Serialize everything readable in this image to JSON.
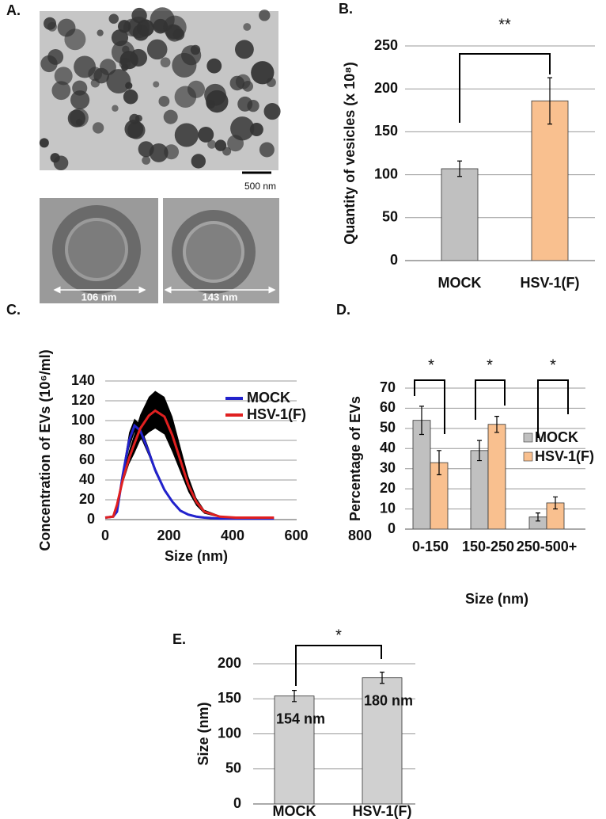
{
  "panel_a": {
    "label": "A.",
    "scale_bar": "500 nm",
    "measurements": [
      "106 nm",
      "143 nm"
    ]
  },
  "chart_data": [
    {
      "type": "bar",
      "label": "B.",
      "y_label": "Quantity of vesicles (x 10⁸)",
      "categories": [
        "MOCK",
        "HSV-1(F)"
      ],
      "values": [
        107,
        186
      ],
      "errors": [
        9,
        27
      ],
      "colors": [
        "#c0c0c0",
        "#f9c08f"
      ],
      "ylim": [
        0,
        250
      ],
      "yticks": [
        0,
        50,
        100,
        150,
        200,
        250
      ],
      "grid": true,
      "annotations": [
        "**"
      ]
    },
    {
      "type": "line",
      "label": "C.",
      "x_label": "Size (nm)",
      "y_label": "Concentration of EVs (10⁶/ml)",
      "x": [
        0,
        25,
        37,
        55,
        75,
        92,
        110,
        137,
        157,
        186,
        211,
        236,
        261,
        286,
        311,
        360,
        410,
        530
      ],
      "series": [
        {
          "name": "MOCK",
          "color": "#2222cc",
          "values": [
            2,
            3,
            8,
            45,
            80,
            95,
            90,
            68,
            50,
            30,
            18,
            9,
            5,
            3,
            2,
            1,
            1,
            1
          ],
          "upper": [
            2,
            3,
            9,
            50,
            88,
            102,
            96,
            72,
            53,
            32,
            19,
            10,
            5,
            3,
            2,
            1,
            1,
            1
          ],
          "lower": [
            2,
            3,
            7,
            40,
            72,
            88,
            84,
            64,
            47,
            28,
            17,
            8,
            5,
            3,
            2,
            1,
            1,
            1
          ]
        },
        {
          "name": "HSV-1(F)",
          "color": "#e02020",
          "values": [
            2,
            3,
            15,
            40,
            62,
            77,
            92,
            105,
            110,
            104,
            85,
            60,
            35,
            18,
            8,
            3,
            2,
            2
          ],
          "upper": [
            2,
            3,
            16,
            44,
            70,
            87,
            106,
            124,
            130,
            124,
            104,
            74,
            44,
            22,
            10,
            4,
            2,
            2
          ],
          "lower": [
            2,
            3,
            14,
            36,
            56,
            67,
            80,
            88,
            92,
            86,
            68,
            48,
            28,
            14,
            6,
            2,
            2,
            2
          ]
        }
      ],
      "band_color": "#000000",
      "xlim": [
        0,
        800
      ],
      "xticks": [
        0,
        200,
        400,
        600,
        800
      ],
      "ylim": [
        0,
        140
      ],
      "yticks": [
        0,
        20,
        40,
        60,
        80,
        100,
        120,
        140
      ],
      "grid": true,
      "legend": "upper right"
    },
    {
      "type": "bar",
      "label": "D.",
      "x_label": "Size (nm)",
      "y_label": "Percentage of EVs",
      "categories": [
        "0-150",
        "150-250",
        "250-500+"
      ],
      "series": [
        {
          "name": "MOCK",
          "color": "#c0c0c0",
          "values": [
            54,
            39,
            6
          ],
          "errors": [
            7,
            5,
            2
          ]
        },
        {
          "name": "HSV-1(F)",
          "color": "#f9c08f",
          "values": [
            33,
            52,
            13
          ],
          "errors": [
            6,
            4,
            3
          ]
        }
      ],
      "ylim": [
        0,
        70
      ],
      "yticks": [
        0,
        10,
        20,
        30,
        40,
        50,
        60,
        70
      ],
      "grid": true,
      "legend": "right",
      "annotations": [
        "*",
        "*",
        "*"
      ]
    },
    {
      "type": "bar",
      "label": "E.",
      "y_label": "Size (nm)",
      "categories": [
        "MOCK",
        "HSV-1(F)"
      ],
      "values": [
        154,
        180
      ],
      "value_labels": [
        "154 nm",
        "180 nm"
      ],
      "errors": [
        8,
        8
      ],
      "color": "#d0d0d0",
      "ylim": [
        0,
        200
      ],
      "yticks": [
        0,
        50,
        100,
        150,
        200
      ],
      "grid": true,
      "annotations": [
        "*"
      ]
    }
  ]
}
